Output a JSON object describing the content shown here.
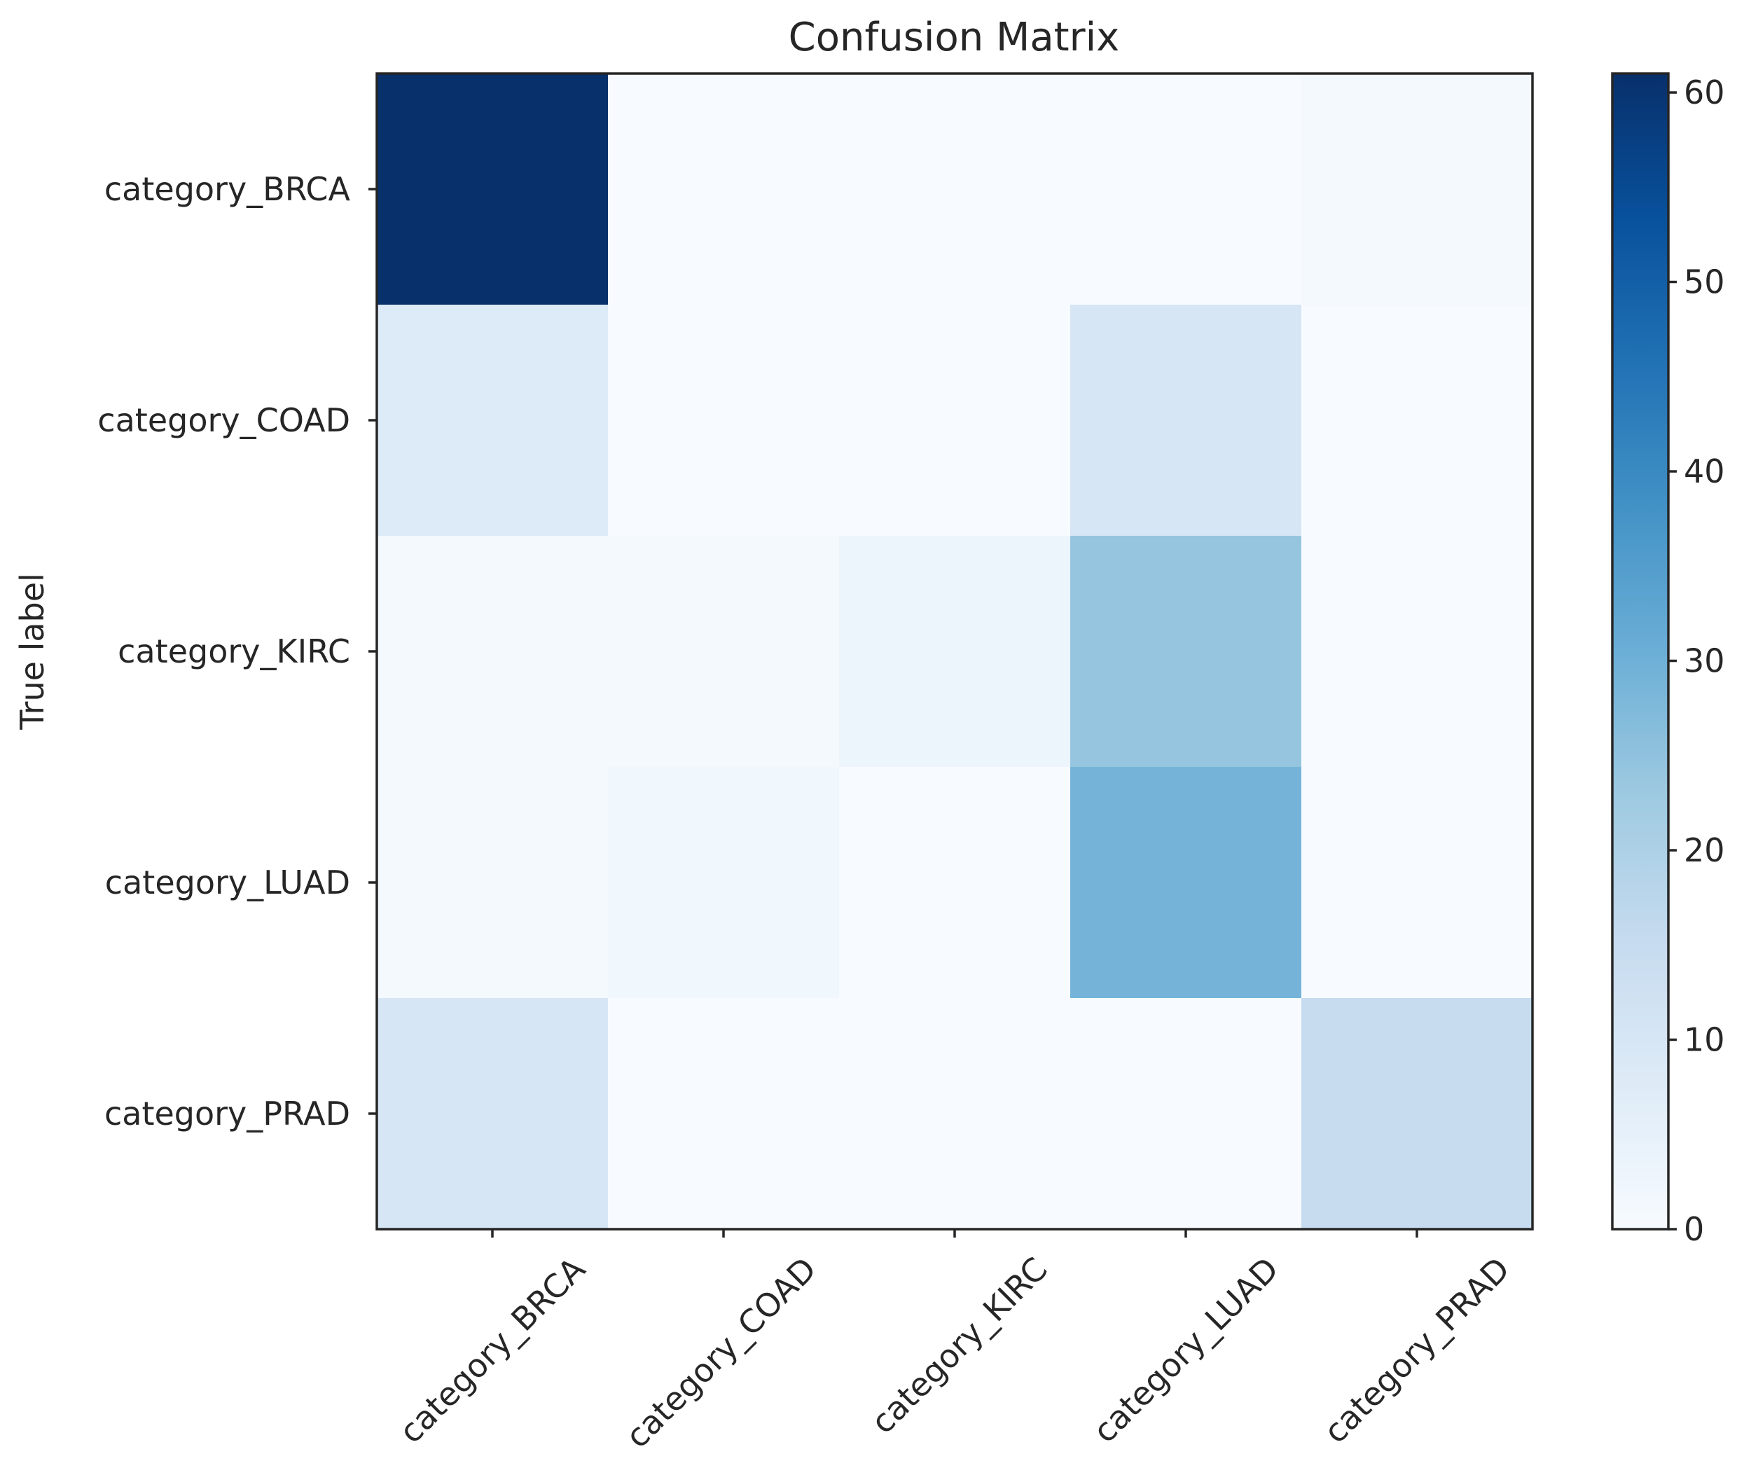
{
  "chart_data": {
    "type": "heatmap",
    "title": "Confusion Matrix",
    "ylabel": "True label",
    "xlabel": "",
    "x_categories": [
      "category_BRCA",
      "category_COAD",
      "category_KIRC",
      "category_LUAD",
      "category_PRAD"
    ],
    "y_categories": [
      "category_BRCA",
      "category_COAD",
      "category_KIRC",
      "category_LUAD",
      "category_PRAD"
    ],
    "values": [
      [
        61,
        0,
        0,
        0,
        1
      ],
      [
        8,
        0,
        0,
        10,
        0
      ],
      [
        1,
        1,
        3,
        24,
        0
      ],
      [
        1,
        2,
        0,
        29,
        0
      ],
      [
        10,
        0,
        0,
        0,
        15
      ]
    ],
    "colormap": "Blues",
    "colorbar": {
      "min": 0,
      "max": 61,
      "ticks": [
        0,
        10,
        20,
        30,
        40,
        50,
        60
      ]
    }
  }
}
